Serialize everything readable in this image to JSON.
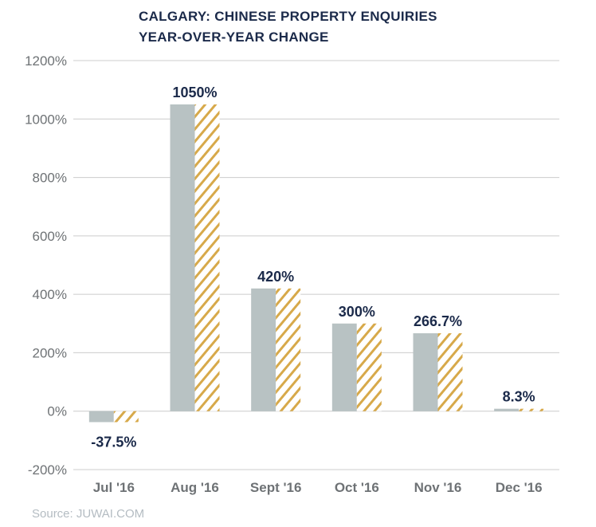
{
  "chart_data": {
    "type": "bar",
    "title_lines": [
      "CALGARY: CHINESE PROPERTY ENQUIRIES",
      "YEAR-OVER-YEAR CHANGE"
    ],
    "categories": [
      "Jul '16",
      "Aug '16",
      "Sept '16",
      "Oct '16",
      "Nov '16",
      "Dec '16"
    ],
    "values": [
      -37.5,
      1050,
      420,
      300,
      266.7,
      8.3
    ],
    "data_labels": [
      "-37.5%",
      "1050%",
      "420%",
      "300%",
      "266.7%",
      "8.3%"
    ],
    "ylim": [
      -200,
      1200
    ],
    "yticks": [
      -200,
      0,
      200,
      400,
      600,
      800,
      1000,
      1200
    ],
    "ytick_labels": [
      "-200%",
      "0%",
      "200%",
      "400%",
      "600%",
      "800%",
      "1000%",
      "1200%"
    ],
    "grid": true,
    "legend": "none",
    "bar_style": "solid grey half with gold diagonal hatched half",
    "colors": {
      "bar_solid": "#b8c2c3",
      "hatch": "#d7a94a",
      "title": "#1b2a4a",
      "labels": "#1b2a4a",
      "ticks": "#6e7275",
      "grid": "#cccccc",
      "source": "#b4bcc2"
    }
  },
  "source": "Source: JUWAI.COM"
}
